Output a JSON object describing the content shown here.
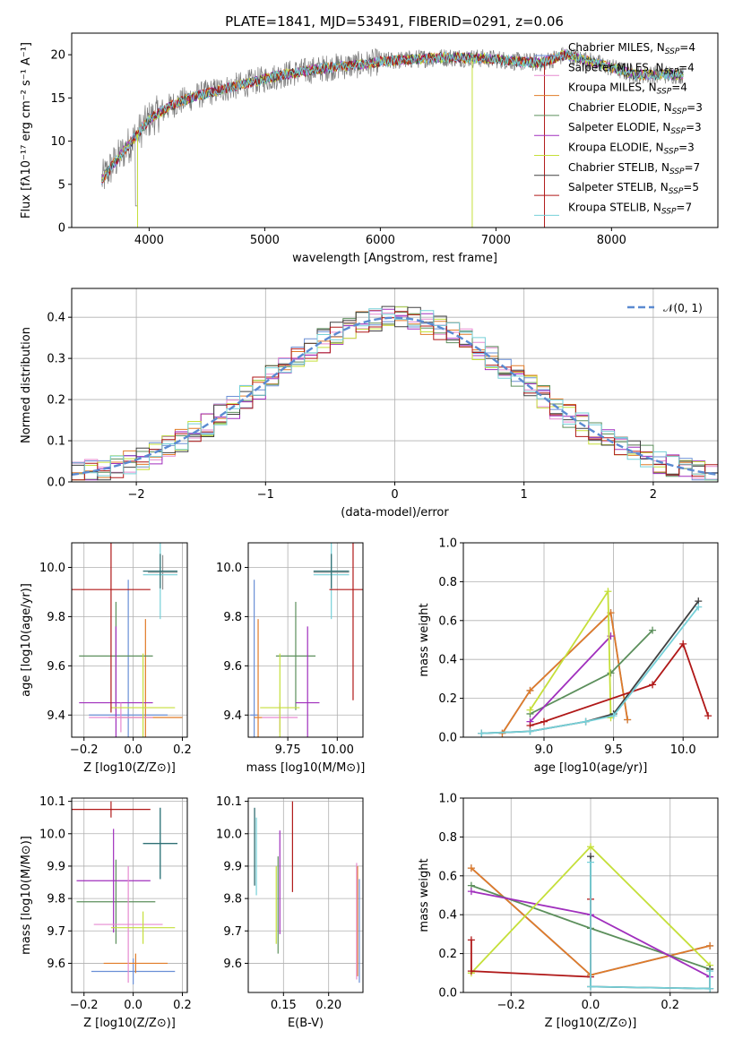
{
  "title": "PLATE=1841, MJD=53491, FIBERID=0291, z=0.06",
  "colors": [
    "#6a8fd6",
    "#e07b28",
    "#5c8f5c",
    "#a02fbd",
    "#8a5a3c",
    "#e68ad0",
    "#8f8f8f",
    "#c5df3a",
    "#76d0d8",
    "#b01818"
  ],
  "chart_data": [
    {
      "panel": "spectrum",
      "type": "line",
      "xlabel": "wavelength [Angstrom, rest frame]",
      "ylabel": "Flux [fλ10⁻¹⁷ erg cm⁻² s⁻¹ A⁻¹]",
      "xlim": [
        3330,
        8920
      ],
      "ylim": [
        0,
        22.5
      ],
      "xticks": [
        4000,
        5000,
        6000,
        7000,
        8000
      ],
      "yticks": [
        0,
        5,
        10,
        15,
        20
      ],
      "continuum_x": [
        3590,
        3700,
        3850,
        4000,
        4200,
        4400,
        4600,
        4800,
        5000,
        5200,
        5400,
        5600,
        5800,
        6000,
        6200,
        6400,
        6600,
        6800,
        7000,
        7200,
        7400,
        7600,
        7800,
        8000,
        8200,
        8400,
        8600
      ],
      "continuum_y": [
        5.5,
        7.5,
        10,
        12.5,
        14.2,
        15.2,
        15.9,
        16.5,
        17.2,
        17.8,
        18.2,
        18.6,
        18.8,
        19.2,
        19.4,
        19.6,
        19.7,
        19.6,
        19.5,
        19.2,
        19.1,
        20.0,
        19.3,
        18.5,
        17.7,
        17.7,
        17.7
      ],
      "legend": [
        {
          "label": "Chabrier MILES, N_SSP=4",
          "color": "#6a8fd6"
        },
        {
          "label": "Salpeter MILES, N_SSP=4",
          "color": "#e68ad0"
        },
        {
          "label": "Kroupa MILES, N_SSP=4",
          "color": "#e07b28"
        },
        {
          "label": "Chabrier ELODIE, N_SSP=3",
          "color": "#5c8f5c"
        },
        {
          "label": "Salpeter ELODIE, N_SSP=3",
          "color": "#a02fbd"
        },
        {
          "label": "Kroupa ELODIE, N_SSP=3",
          "color": "#c5df3a"
        },
        {
          "label": "Chabrier STELIB, N_SSP=7",
          "color": "#404040"
        },
        {
          "label": "Salpeter STELIB, N_SSP=5",
          "color": "#b01818"
        },
        {
          "label": "Kroupa STELIB, N_SSP=7",
          "color": "#76d0d8"
        }
      ]
    },
    {
      "panel": "residuals",
      "type": "line",
      "xlabel": "(data-model)/error",
      "ylabel": "Normed distribution",
      "xlim": [
        -2.5,
        2.5
      ],
      "ylim": [
        0,
        0.47
      ],
      "xticks": [
        -2,
        -1,
        0,
        1,
        2
      ],
      "yticks": [
        0.0,
        0.1,
        0.2,
        0.3,
        0.4
      ],
      "normal_label": "𝒩(0, 1)",
      "bin_width": 0.1
    },
    {
      "panel": "age-vs-Z",
      "type": "scatter",
      "xlabel": "Z [log10(Z/Z⊙)]",
      "ylabel": "age [log10(age/yr)]",
      "xlim": [
        -0.25,
        0.22
      ],
      "ylim": [
        9.31,
        10.1
      ],
      "xticks": [
        -0.2,
        0.0,
        0.2
      ],
      "yticks": [
        9.4,
        9.6,
        9.8,
        10.0
      ],
      "points": [
        {
          "x": -0.02,
          "y": 9.4,
          "xerr": 0.16,
          "yerr": 0.55,
          "color": "#6a8fd6"
        },
        {
          "x": 0.05,
          "y": 9.39,
          "xerr": 0.15,
          "yerr": 0.4,
          "color": "#e07b28"
        },
        {
          "x": -0.07,
          "y": 9.64,
          "xerr": 0.15,
          "yerr": 0.22,
          "color": "#5c8f5c"
        },
        {
          "x": -0.07,
          "y": 9.45,
          "xerr": 0.15,
          "yerr": 0.31,
          "color": "#a02fbd"
        },
        {
          "x": 0.12,
          "y": 9.98,
          "xerr": 0.06,
          "yerr": 0.07,
          "color": "#8f8f8f"
        },
        {
          "x": -0.05,
          "y": 9.39,
          "xerr": 0.13,
          "yerr": 0.06,
          "color": "#e68ad0"
        },
        {
          "x": 0.04,
          "y": 9.43,
          "xerr": 0.13,
          "yerr": 0.22,
          "color": "#c5df3a"
        },
        {
          "x": 0.11,
          "y": 9.97,
          "xerr": 0.07,
          "yerr": 0.18,
          "color": "#76d0d8"
        },
        {
          "x": -0.09,
          "y": 9.91,
          "xerr": 0.16,
          "yerr": 0.5,
          "color": "#b01818"
        },
        {
          "x": 0.11,
          "y": 9.985,
          "xerr": 0.07,
          "yerr": 0.07,
          "color": "#2f6f73"
        }
      ]
    },
    {
      "panel": "age-vs-mass",
      "type": "scatter",
      "xlabel": "mass [log10(M/M⊙)]",
      "ylabel": "",
      "xlim": [
        9.55,
        10.13
      ],
      "ylim": [
        9.31,
        10.1
      ],
      "xticks": [
        9.75,
        10.0
      ],
      "yticks": [
        9.4,
        9.6,
        9.8,
        10.0
      ],
      "points": [
        {
          "x": 9.58,
          "y": 9.4,
          "xerr": 0.02,
          "yerr": 0.55,
          "color": "#6a8fd6"
        },
        {
          "x": 9.6,
          "y": 9.39,
          "xerr": 0.02,
          "yerr": 0.4,
          "color": "#e07b28"
        },
        {
          "x": 9.79,
          "y": 9.64,
          "xerr": 0.1,
          "yerr": 0.22,
          "color": "#5c8f5c"
        },
        {
          "x": 9.85,
          "y": 9.45,
          "xerr": 0.06,
          "yerr": 0.31,
          "color": "#a02fbd"
        },
        {
          "x": 9.97,
          "y": 9.98,
          "xerr": 0.09,
          "yerr": 0.07,
          "color": "#8f8f8f"
        },
        {
          "x": 9.71,
          "y": 9.39,
          "xerr": 0.09,
          "yerr": 0.06,
          "color": "#e68ad0"
        },
        {
          "x": 9.71,
          "y": 9.43,
          "xerr": 0.1,
          "yerr": 0.22,
          "color": "#c5df3a"
        },
        {
          "x": 9.97,
          "y": 9.97,
          "xerr": 0.09,
          "yerr": 0.18,
          "color": "#76d0d8"
        },
        {
          "x": 10.08,
          "y": 9.91,
          "xerr": 0.12,
          "yerr": 0.45,
          "color": "#b01818"
        },
        {
          "x": 9.97,
          "y": 9.985,
          "xerr": 0.09,
          "yerr": 0.07,
          "color": "#2f6f73"
        }
      ]
    },
    {
      "panel": "mass-weight-vs-age",
      "type": "line",
      "xlabel": "age [log10(age/yr)]",
      "ylabel": "mass weight",
      "xlim": [
        8.42,
        10.25
      ],
      "ylim": [
        0,
        1.0
      ],
      "xticks": [
        9.0,
        9.5,
        10.0
      ],
      "yticks": [
        0.0,
        0.2,
        0.4,
        0.6,
        0.8,
        1.0
      ],
      "series": [
        {
          "color": "#6a8fd6",
          "x": [
            8.7,
            8.9,
            9.48,
            9.6
          ],
          "y": [
            0.02,
            0.24,
            0.64,
            0.09
          ]
        },
        {
          "color": "#e07b28",
          "x": [
            8.7,
            8.9,
            9.48,
            9.6
          ],
          "y": [
            0.02,
            0.24,
            0.64,
            0.09
          ]
        },
        {
          "color": "#5c8f5c",
          "x": [
            8.9,
            9.48,
            9.78
          ],
          "y": [
            0.12,
            0.33,
            0.55
          ]
        },
        {
          "color": "#a02fbd",
          "x": [
            8.9,
            9.48
          ],
          "y": [
            0.08,
            0.52
          ]
        },
        {
          "color": "#c5df3a",
          "x": [
            8.9,
            9.46,
            9.48
          ],
          "y": [
            0.14,
            0.75,
            0.1
          ]
        },
        {
          "color": "#404040",
          "x": [
            8.55,
            8.9,
            9.3,
            9.5,
            10.11
          ],
          "y": [
            0.02,
            0.03,
            0.08,
            0.12,
            0.7
          ]
        },
        {
          "color": "#b01818",
          "x": [
            8.9,
            9.0,
            9.78,
            10.0,
            10.18
          ],
          "y": [
            0.06,
            0.08,
            0.27,
            0.48,
            0.11
          ]
        },
        {
          "color": "#76d0d8",
          "x": [
            8.55,
            8.9,
            9.3,
            9.5,
            10.11
          ],
          "y": [
            0.02,
            0.03,
            0.08,
            0.11,
            0.67
          ]
        }
      ]
    },
    {
      "panel": "mass-vs-Z",
      "type": "scatter",
      "xlabel": "Z [log10(Z/Z⊙)]",
      "ylabel": "mass [log10(M/M⊙)]",
      "xlim": [
        -0.25,
        0.22
      ],
      "ylim": [
        9.51,
        10.11
      ],
      "xticks": [
        -0.2,
        0.0,
        0.2
      ],
      "yticks": [
        9.6,
        9.7,
        9.8,
        9.9,
        10.0,
        10.1
      ],
      "points": [
        {
          "x": 0.0,
          "y": 9.575,
          "xerr": 0.17,
          "yerr": 0.04,
          "color": "#6a8fd6"
        },
        {
          "x": 0.01,
          "y": 9.6,
          "xerr": 0.13,
          "yerr": 0.03,
          "color": "#e07b28"
        },
        {
          "x": -0.07,
          "y": 9.79,
          "xerr": 0.16,
          "yerr": 0.13,
          "color": "#5c8f5c"
        },
        {
          "x": -0.08,
          "y": 9.855,
          "xerr": 0.15,
          "yerr": 0.16,
          "color": "#a02fbd"
        },
        {
          "x": 0.11,
          "y": 9.97,
          "xerr": 0.07,
          "yerr": 0.11,
          "color": "#8f8f8f"
        },
        {
          "x": -0.02,
          "y": 9.72,
          "xerr": 0.14,
          "yerr": 0.18,
          "color": "#e68ad0"
        },
        {
          "x": 0.04,
          "y": 9.71,
          "xerr": 0.13,
          "yerr": 0.05,
          "color": "#c5df3a"
        },
        {
          "x": 0.11,
          "y": 9.97,
          "xerr": 0.07,
          "yerr": 0.11,
          "color": "#76d0d8"
        },
        {
          "x": -0.09,
          "y": 10.075,
          "xerr": 0.16,
          "yerr": 0.025,
          "color": "#b01818"
        },
        {
          "x": 0.11,
          "y": 9.97,
          "xerr": 0.07,
          "yerr": 0.11,
          "color": "#2f6f73"
        }
      ]
    },
    {
      "panel": "mass-vs-EBV",
      "type": "scatter",
      "xlabel": "E(B-V)",
      "ylabel": "",
      "xlim": [
        0.111,
        0.238
      ],
      "ylim": [
        9.51,
        10.11
      ],
      "xticks": [
        0.15,
        0.2
      ],
      "yticks": [
        9.6,
        9.7,
        9.8,
        9.9,
        10.0,
        10.1
      ],
      "points": [
        {
          "x": 0.234,
          "y": 9.7,
          "yerr": 0.16,
          "color": "#6a8fd6"
        },
        {
          "x": 0.232,
          "y": 9.73,
          "yerr": 0.17,
          "color": "#e07b28"
        },
        {
          "x": 0.144,
          "y": 9.78,
          "yerr": 0.15,
          "color": "#5c8f5c"
        },
        {
          "x": 0.146,
          "y": 9.85,
          "yerr": 0.16,
          "color": "#a02fbd"
        },
        {
          "x": 0.118,
          "y": 9.96,
          "yerr": 0.12,
          "color": "#8f8f8f"
        },
        {
          "x": 0.231,
          "y": 9.73,
          "yerr": 0.18,
          "color": "#e68ad0"
        },
        {
          "x": 0.142,
          "y": 9.78,
          "yerr": 0.12,
          "color": "#c5df3a"
        },
        {
          "x": 0.12,
          "y": 9.93,
          "yerr": 0.12,
          "color": "#76d0d8"
        },
        {
          "x": 0.16,
          "y": 9.96,
          "yerr": 0.14,
          "color": "#b01818"
        },
        {
          "x": 0.118,
          "y": 9.96,
          "yerr": 0.12,
          "color": "#2f6f73"
        }
      ]
    },
    {
      "panel": "mass-weight-vs-Z",
      "type": "line",
      "xlabel": "Z [log10(Z/Z⊙)]",
      "ylabel": "mass weight",
      "xlim": [
        -0.32,
        0.32
      ],
      "ylim": [
        0,
        1.0
      ],
      "xticks": [
        -0.2,
        0.0,
        0.2
      ],
      "yticks": [
        0.0,
        0.2,
        0.4,
        0.6,
        0.8,
        1.0
      ],
      "series": [
        {
          "color": "#6a8fd6",
          "x": [
            -0.3,
            0.0,
            0.3
          ],
          "y": [
            0.64,
            0.09,
            0.24
          ]
        },
        {
          "color": "#e07b28",
          "x": [
            -0.3,
            0.0,
            0.3
          ],
          "y": [
            0.64,
            0.09,
            0.24
          ]
        },
        {
          "color": "#5c8f5c",
          "x": [
            -0.3,
            0.0,
            0.3
          ],
          "y": [
            0.55,
            0.33,
            0.12
          ]
        },
        {
          "color": "#a02fbd",
          "x": [
            -0.3,
            0.0,
            0.3
          ],
          "y": [
            0.52,
            0.4,
            0.08
          ]
        },
        {
          "color": "#c5df3a",
          "x": [
            -0.3,
            0.0,
            0.3
          ],
          "y": [
            0.1,
            0.75,
            0.14
          ]
        },
        {
          "color": "#404040",
          "x": [
            0.0,
            0.0,
            0.3,
            0.3
          ],
          "y": [
            0.7,
            0.03,
            0.02,
            0.12
          ]
        },
        {
          "color": "#b01818",
          "x": [
            -0.3,
            -0.3,
            0.0,
            0.0
          ],
          "y": [
            0.27,
            0.11,
            0.08,
            0.48
          ]
        },
        {
          "color": "#76d0d8",
          "x": [
            0.0,
            0.0,
            0.3,
            0.3
          ],
          "y": [
            0.67,
            0.03,
            0.02,
            0.11
          ]
        }
      ]
    }
  ]
}
